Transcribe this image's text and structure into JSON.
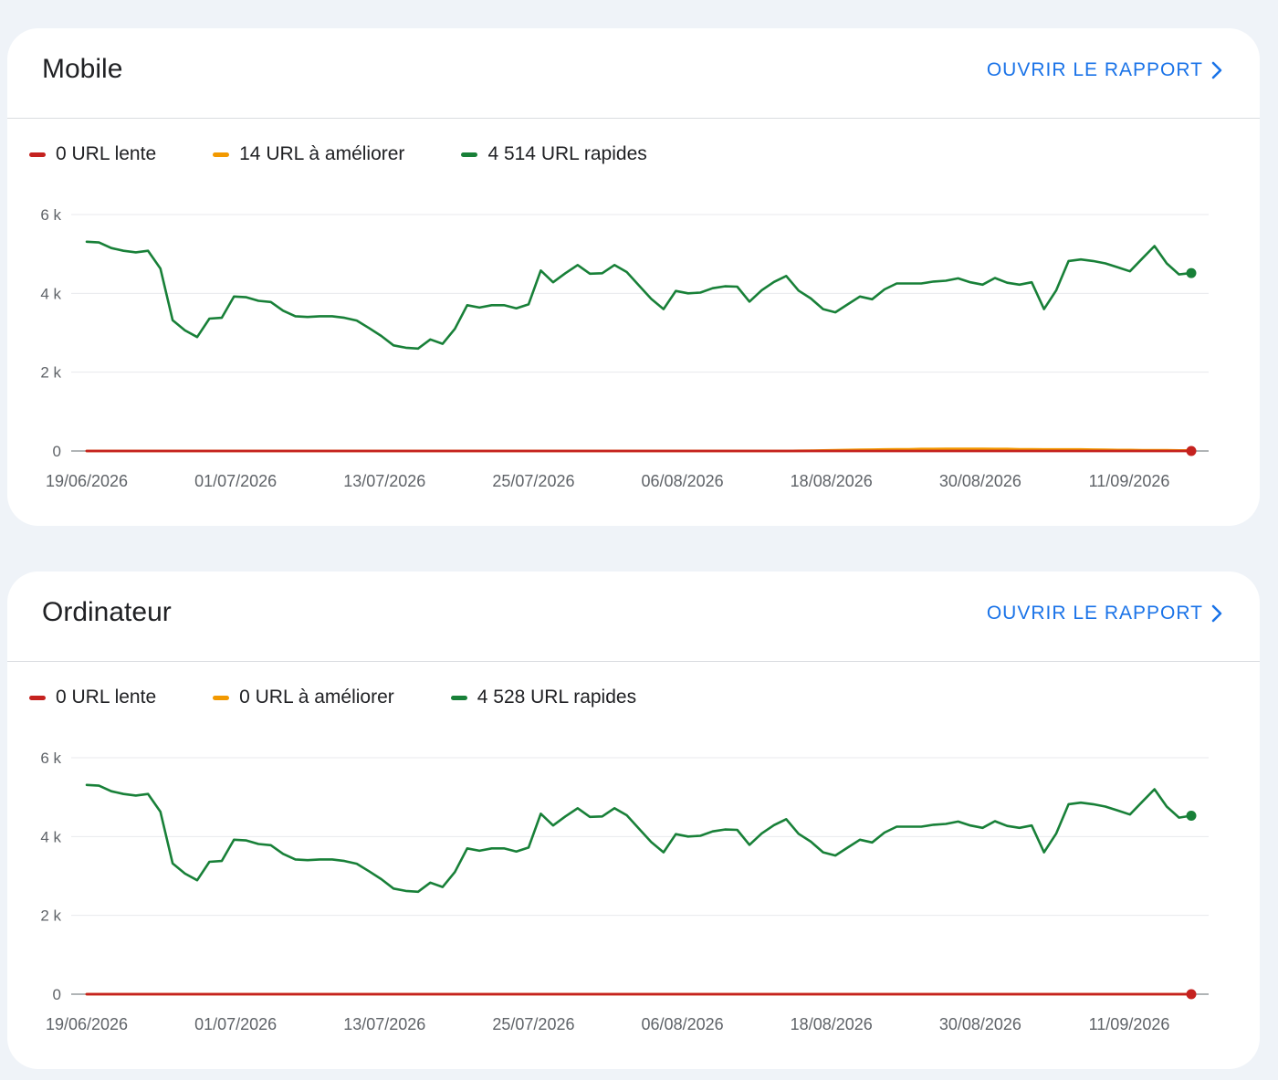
{
  "colors": {
    "slow": "#c5221f",
    "improve": "#f29900",
    "fast": "#188038",
    "link": "#1a73e8",
    "grid": "#e8eaed",
    "axis": "#80868b"
  },
  "cards": [
    {
      "title": "Mobile",
      "link_label": "OUVRIR LE RAPPORT",
      "link_icon": "chevron-right-icon",
      "legend": [
        {
          "label": "0 URL lente",
          "color_key": "slow"
        },
        {
          "label": "14 URL à améliorer",
          "color_key": "improve"
        },
        {
          "label": "4 514 URL rapides",
          "color_key": "fast"
        }
      ]
    },
    {
      "title": "Ordinateur",
      "link_label": "OUVRIR LE RAPPORT",
      "link_icon": "chevron-right-icon",
      "legend": [
        {
          "label": "0 URL lente",
          "color_key": "slow"
        },
        {
          "label": "0 URL à améliorer",
          "color_key": "improve"
        },
        {
          "label": "4 528 URL rapides",
          "color_key": "fast"
        }
      ]
    }
  ],
  "chart_data": [
    {
      "type": "line",
      "title": "Mobile",
      "x_ticks": [
        "19/06/2026",
        "01/07/2026",
        "13/07/2026",
        "25/07/2026",
        "06/08/2026",
        "18/08/2026",
        "30/08/2026",
        "11/09/2026"
      ],
      "y_ticks": [
        "0",
        "2 k",
        "4 k",
        "6 k"
      ],
      "ylim": [
        0,
        6000
      ],
      "x_start": "19/06/2026",
      "x_end": "16/09/2026",
      "grid": true,
      "legend_position": "top-left",
      "series": [
        {
          "name": "URL rapides",
          "color_key": "fast",
          "end_marker": true,
          "values": [
            5310,
            5290,
            5150,
            5080,
            5040,
            5080,
            4630,
            3320,
            3060,
            2890,
            3360,
            3380,
            3920,
            3900,
            3810,
            3780,
            3560,
            3420,
            3400,
            3420,
            3420,
            3380,
            3310,
            3120,
            2920,
            2680,
            2620,
            2600,
            2830,
            2720,
            3100,
            3700,
            3640,
            3700,
            3700,
            3620,
            3720,
            4580,
            4280,
            4510,
            4720,
            4500,
            4510,
            4720,
            4540,
            4200,
            3860,
            3600,
            4060,
            4000,
            4020,
            4130,
            4180,
            4170,
            3790,
            4080,
            4290,
            4440,
            4070,
            3870,
            3600,
            3520,
            3720,
            3920,
            3850,
            4100,
            4250,
            4250,
            4250,
            4300,
            4320,
            4380,
            4280,
            4220,
            4390,
            4270,
            4220,
            4280,
            3600,
            4080,
            4820,
            4860,
            4820,
            4760,
            4660,
            4560,
            4880,
            5200,
            4760,
            4480,
            4514
          ]
        },
        {
          "name": "URL à améliorer",
          "color_key": "improve",
          "end_marker": false,
          "values": [
            0,
            0,
            0,
            0,
            0,
            0,
            0,
            0,
            0,
            0,
            0,
            0,
            0,
            0,
            0,
            0,
            0,
            0,
            0,
            0,
            0,
            0,
            0,
            0,
            0,
            0,
            0,
            0,
            0,
            0,
            0,
            0,
            0,
            0,
            0,
            0,
            0,
            0,
            0,
            0,
            0,
            0,
            0,
            0,
            0,
            0,
            0,
            0,
            0,
            0,
            0,
            0,
            0,
            0,
            0,
            0,
            0,
            0,
            5,
            10,
            15,
            20,
            25,
            30,
            35,
            40,
            45,
            45,
            50,
            50,
            55,
            55,
            55,
            55,
            50,
            50,
            45,
            45,
            40,
            40,
            40,
            40,
            35,
            30,
            25,
            25,
            20,
            20,
            18,
            15,
            14
          ]
        },
        {
          "name": "URL lente",
          "color_key": "slow",
          "end_marker": true,
          "values": [
            0,
            0,
            0,
            0,
            0,
            0,
            0,
            0,
            0,
            0,
            0,
            0,
            0,
            0,
            0,
            0,
            0,
            0,
            0,
            0,
            0,
            0,
            0,
            0,
            0,
            0,
            0,
            0,
            0,
            0,
            0,
            0,
            0,
            0,
            0,
            0,
            0,
            0,
            0,
            0,
            0,
            0,
            0,
            0,
            0,
            0,
            0,
            0,
            0,
            0,
            0,
            0,
            0,
            0,
            0,
            0,
            0,
            0,
            0,
            0,
            0,
            0,
            0,
            0,
            0,
            0,
            0,
            0,
            0,
            0,
            0,
            0,
            0,
            0,
            0,
            0,
            0,
            0,
            0,
            0,
            0,
            0,
            0,
            0,
            0,
            0,
            0,
            0,
            0,
            0,
            0
          ]
        }
      ]
    },
    {
      "type": "line",
      "title": "Ordinateur",
      "x_ticks": [
        "19/06/2026",
        "01/07/2026",
        "13/07/2026",
        "25/07/2026",
        "06/08/2026",
        "18/08/2026",
        "30/08/2026",
        "11/09/2026"
      ],
      "y_ticks": [
        "0",
        "2 k",
        "4 k",
        "6 k"
      ],
      "ylim": [
        0,
        6000
      ],
      "x_start": "19/06/2026",
      "x_end": "16/09/2026",
      "grid": true,
      "legend_position": "top-left",
      "series": [
        {
          "name": "URL rapides",
          "color_key": "fast",
          "end_marker": true,
          "values": [
            5310,
            5290,
            5150,
            5080,
            5040,
            5080,
            4630,
            3320,
            3060,
            2890,
            3360,
            3380,
            3920,
            3900,
            3810,
            3780,
            3560,
            3420,
            3400,
            3420,
            3420,
            3380,
            3310,
            3120,
            2920,
            2680,
            2620,
            2600,
            2830,
            2720,
            3100,
            3700,
            3640,
            3700,
            3700,
            3620,
            3720,
            4580,
            4280,
            4510,
            4720,
            4500,
            4510,
            4720,
            4540,
            4200,
            3860,
            3600,
            4060,
            4000,
            4020,
            4130,
            4180,
            4170,
            3790,
            4080,
            4290,
            4440,
            4070,
            3870,
            3600,
            3520,
            3720,
            3920,
            3850,
            4100,
            4250,
            4250,
            4250,
            4300,
            4320,
            4380,
            4280,
            4220,
            4390,
            4270,
            4220,
            4280,
            3600,
            4080,
            4820,
            4860,
            4820,
            4760,
            4660,
            4560,
            4880,
            5200,
            4760,
            4480,
            4528
          ]
        },
        {
          "name": "URL à améliorer",
          "color_key": "improve",
          "end_marker": false,
          "values": [
            0,
            0,
            0,
            0,
            0,
            0,
            0,
            0,
            0,
            0,
            0,
            0,
            0,
            0,
            0,
            0,
            0,
            0,
            0,
            0,
            0,
            0,
            0,
            0,
            0,
            0,
            0,
            0,
            0,
            0,
            0,
            0,
            0,
            0,
            0,
            0,
            0,
            0,
            0,
            0,
            0,
            0,
            0,
            0,
            0,
            0,
            0,
            0,
            0,
            0,
            0,
            0,
            0,
            0,
            0,
            0,
            0,
            0,
            0,
            0,
            0,
            0,
            0,
            0,
            0,
            0,
            0,
            0,
            0,
            0,
            0,
            0,
            0,
            0,
            0,
            0,
            0,
            0,
            0,
            0,
            0,
            0,
            0,
            0,
            0,
            0,
            0,
            0,
            0,
            0,
            0
          ]
        },
        {
          "name": "URL lente",
          "color_key": "slow",
          "end_marker": true,
          "values": [
            0,
            0,
            0,
            0,
            0,
            0,
            0,
            0,
            0,
            0,
            0,
            0,
            0,
            0,
            0,
            0,
            0,
            0,
            0,
            0,
            0,
            0,
            0,
            0,
            0,
            0,
            0,
            0,
            0,
            0,
            0,
            0,
            0,
            0,
            0,
            0,
            0,
            0,
            0,
            0,
            0,
            0,
            0,
            0,
            0,
            0,
            0,
            0,
            0,
            0,
            0,
            0,
            0,
            0,
            0,
            0,
            0,
            0,
            0,
            0,
            0,
            0,
            0,
            0,
            0,
            0,
            0,
            0,
            0,
            0,
            0,
            0,
            0,
            0,
            0,
            0,
            0,
            0,
            0,
            0,
            0,
            0,
            0,
            0,
            0,
            0,
            0,
            0,
            0,
            0,
            0,
            0
          ]
        }
      ]
    }
  ]
}
